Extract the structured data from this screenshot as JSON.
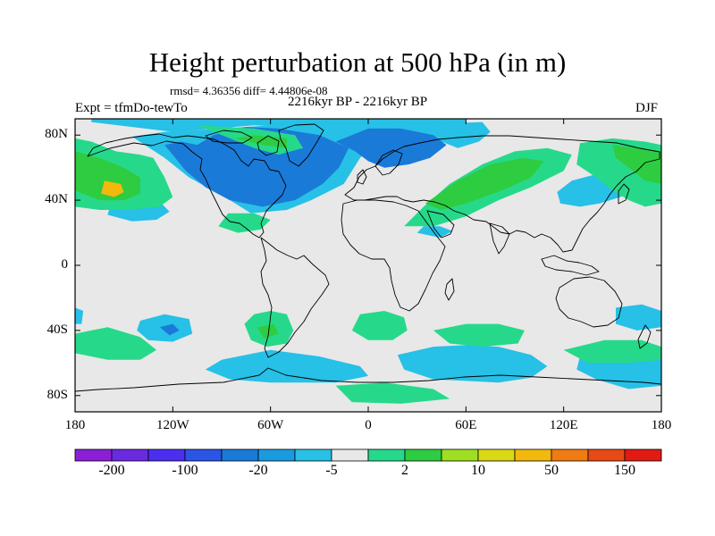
{
  "title": "Height perturbation at 500 hPa (in m)",
  "stats": "rmsd= 4.36356 diff= 4.44806e-08",
  "subtitle": "2216kyr BP - 2216kyr BP",
  "experiment": "Expt = tfmDo-tewTo",
  "season": "DJF",
  "map": {
    "projection": "cylindrical equidistant",
    "lon_range": [
      -180,
      180
    ],
    "lat_range": [
      -90,
      90
    ],
    "ocean_land_background": "#e8e8e8",
    "lat_ticks": [
      {
        "lat": 80,
        "label": "80N"
      },
      {
        "lat": 40,
        "label": "40N"
      },
      {
        "lat": 0,
        "label": "0"
      },
      {
        "lat": -40,
        "label": "40S"
      },
      {
        "lat": -80,
        "label": "80S"
      }
    ],
    "lon_ticks": [
      {
        "lon": -180,
        "label": "180"
      },
      {
        "lon": -120,
        "label": "120W"
      },
      {
        "lon": -60,
        "label": "60W"
      },
      {
        "lon": 0,
        "label": "0"
      },
      {
        "lon": 60,
        "label": "60E"
      },
      {
        "lon": 120,
        "label": "120E"
      },
      {
        "lon": 180,
        "label": "180"
      }
    ]
  },
  "colorbar": {
    "colors": [
      "#8c1fd6",
      "#6a2ae0",
      "#4b2ff0",
      "#2a55e6",
      "#1a7ad8",
      "#1a9bdf",
      "#27c0e6",
      "#e8e8e8",
      "#26d98a",
      "#2ecc40",
      "#9ee021",
      "#d9d916",
      "#f2b80c",
      "#ef7b12",
      "#e74a16",
      "#e11b12"
    ],
    "labels": [
      {
        "boundary": 1,
        "text": "-200"
      },
      {
        "boundary": 3,
        "text": "-100"
      },
      {
        "boundary": 5,
        "text": "-20"
      },
      {
        "boundary": 7,
        "text": "-5"
      },
      {
        "boundary": 9,
        "text": "2"
      },
      {
        "boundary": 11,
        "text": "10"
      },
      {
        "boundary": 13,
        "text": "50"
      },
      {
        "boundary": 15,
        "text": "150"
      }
    ]
  },
  "field_regions": [
    {
      "name": "neg-arctic-cap",
      "level": -5,
      "pts": [
        [
          -170,
          88
        ],
        [
          -120,
          82
        ],
        [
          -70,
          86
        ],
        [
          -20,
          84
        ],
        [
          30,
          82
        ],
        [
          60,
          87
        ],
        [
          60,
          90
        ],
        [
          -170,
          90
        ]
      ]
    },
    {
      "name": "neg-n-atlantic-trough",
      "level": -5,
      "pts": [
        [
          -145,
          79
        ],
        [
          -125,
          66
        ],
        [
          -110,
          54
        ],
        [
          -88,
          42
        ],
        [
          -72,
          32
        ],
        [
          -50,
          34
        ],
        [
          -35,
          40
        ],
        [
          -15,
          50
        ],
        [
          -5,
          66
        ],
        [
          5,
          76
        ],
        [
          15,
          78
        ],
        [
          30,
          80
        ],
        [
          45,
          76
        ],
        [
          55,
          72
        ],
        [
          68,
          76
        ],
        [
          75,
          82
        ],
        [
          70,
          88
        ],
        [
          20,
          86
        ],
        [
          -20,
          87
        ],
        [
          -60,
          86
        ],
        [
          -90,
          84
        ],
        [
          -125,
          82
        ]
      ]
    },
    {
      "name": "neg-n-atlantic-core",
      "level": -20,
      "pts": [
        [
          -125,
          74
        ],
        [
          -112,
          58
        ],
        [
          -100,
          48
        ],
        [
          -85,
          40
        ],
        [
          -65,
          36
        ],
        [
          -45,
          40
        ],
        [
          -28,
          50
        ],
        [
          -18,
          60
        ],
        [
          -12,
          72
        ],
        [
          -30,
          80
        ],
        [
          -55,
          84
        ],
        [
          -75,
          85
        ],
        [
          -95,
          80
        ],
        [
          -105,
          74
        ],
        [
          -115,
          76
        ]
      ]
    },
    {
      "name": "neg-europe-core",
      "level": -20,
      "pts": [
        [
          -20,
          76
        ],
        [
          -8,
          70
        ],
        [
          0,
          64
        ],
        [
          10,
          60
        ],
        [
          25,
          62
        ],
        [
          38,
          66
        ],
        [
          48,
          74
        ],
        [
          40,
          80
        ],
        [
          20,
          84
        ],
        [
          0,
          84
        ]
      ]
    },
    {
      "name": "neg-central-pacific",
      "level": -5,
      "pts": [
        [
          -160,
          31
        ],
        [
          -145,
          27
        ],
        [
          -130,
          28
        ],
        [
          -122,
          33
        ],
        [
          -128,
          39
        ],
        [
          -145,
          41
        ],
        [
          -158,
          38
        ]
      ]
    },
    {
      "name": "neg-se-asia",
      "level": -5,
      "pts": [
        [
          30,
          20
        ],
        [
          44,
          17
        ],
        [
          52,
          21
        ],
        [
          44,
          24
        ],
        [
          34,
          24
        ]
      ]
    },
    {
      "name": "neg-nw-pacific",
      "level": -5,
      "pts": [
        [
          118,
          38
        ],
        [
          130,
          36
        ],
        [
          142,
          38
        ],
        [
          155,
          42
        ],
        [
          165,
          48
        ],
        [
          168,
          56
        ],
        [
          155,
          58
        ],
        [
          140,
          56
        ],
        [
          125,
          52
        ],
        [
          116,
          45
        ]
      ]
    },
    {
      "name": "neg-sh-pacific",
      "level": -5,
      "pts": [
        [
          -140,
          -34
        ],
        [
          -125,
          -30
        ],
        [
          -110,
          -33
        ],
        [
          -108,
          -42
        ],
        [
          -120,
          -47
        ],
        [
          -135,
          -46
        ],
        [
          -142,
          -40
        ]
      ]
    },
    {
      "name": "neg-sh-pacific-core",
      "level": -20,
      "pts": [
        [
          -128,
          -38
        ],
        [
          -120,
          -36
        ],
        [
          -116,
          -40
        ],
        [
          -122,
          -43
        ]
      ]
    },
    {
      "name": "neg-sh-atlantic",
      "level": -5,
      "pts": [
        [
          -90,
          -58
        ],
        [
          -60,
          -52
        ],
        [
          -30,
          -56
        ],
        [
          -5,
          -62
        ],
        [
          0,
          -68
        ],
        [
          -20,
          -72
        ],
        [
          -60,
          -72
        ],
        [
          -85,
          -70
        ],
        [
          -100,
          -64
        ]
      ]
    },
    {
      "name": "neg-sh-indian",
      "level": -5,
      "pts": [
        [
          18,
          -55
        ],
        [
          40,
          -50
        ],
        [
          60,
          -49
        ],
        [
          80,
          -50
        ],
        [
          100,
          -55
        ],
        [
          110,
          -62
        ],
        [
          100,
          -69
        ],
        [
          80,
          -72
        ],
        [
          60,
          -71
        ],
        [
          40,
          -70
        ],
        [
          22,
          -64
        ]
      ]
    },
    {
      "name": "neg-sh-east",
      "level": -5,
      "pts": [
        [
          130,
          -56
        ],
        [
          150,
          -50
        ],
        [
          172,
          -52
        ],
        [
          180,
          -56
        ],
        [
          180,
          -74
        ],
        [
          160,
          -76
        ],
        [
          140,
          -70
        ],
        [
          128,
          -64
        ]
      ]
    },
    {
      "name": "neg-australia",
      "level": -5,
      "pts": [
        [
          152,
          -26
        ],
        [
          168,
          -24
        ],
        [
          180,
          -28
        ],
        [
          180,
          -38
        ],
        [
          165,
          -40
        ],
        [
          152,
          -36
        ]
      ]
    },
    {
      "name": "neg-far-west",
      "level": -5,
      "pts": [
        [
          -180,
          -26
        ],
        [
          -175,
          -28
        ],
        [
          -176,
          -36
        ],
        [
          -180,
          -36
        ]
      ]
    },
    {
      "name": "pos-n-pacific",
      "level": 2,
      "pts": [
        [
          -180,
          78
        ],
        [
          -170,
          76
        ],
        [
          -155,
          70
        ],
        [
          -140,
          68
        ],
        [
          -132,
          66
        ],
        [
          -125,
          54
        ],
        [
          -120,
          42
        ],
        [
          -128,
          36
        ],
        [
          -148,
          34
        ],
        [
          -165,
          34
        ],
        [
          -180,
          36
        ]
      ]
    },
    {
      "name": "pos-n-pacific-mid",
      "level": 10,
      "pts": [
        [
          -180,
          70
        ],
        [
          -165,
          66
        ],
        [
          -150,
          60
        ],
        [
          -140,
          54
        ],
        [
          -140,
          44
        ],
        [
          -150,
          40
        ],
        [
          -165,
          40
        ],
        [
          -180,
          46
        ]
      ]
    },
    {
      "name": "pos-n-pacific-core",
      "level": 50,
      "pts": [
        [
          -162,
          52
        ],
        [
          -152,
          50
        ],
        [
          -150,
          45
        ],
        [
          -156,
          42
        ],
        [
          -164,
          44
        ]
      ]
    },
    {
      "name": "pos-far-east-np",
      "level": 2,
      "pts": [
        [
          130,
          75
        ],
        [
          150,
          78
        ],
        [
          170,
          76
        ],
        [
          180,
          74
        ],
        [
          180,
          38
        ],
        [
          170,
          36
        ],
        [
          160,
          40
        ],
        [
          150,
          46
        ],
        [
          140,
          54
        ],
        [
          128,
          62
        ]
      ]
    },
    {
      "name": "pos-far-east-np-mid",
      "level": 10,
      "pts": [
        [
          150,
          74
        ],
        [
          165,
          72
        ],
        [
          180,
          70
        ],
        [
          180,
          50
        ],
        [
          170,
          52
        ],
        [
          160,
          60
        ],
        [
          152,
          66
        ]
      ]
    },
    {
      "name": "pos-greenland",
      "level": 2,
      "pts": [
        [
          -105,
          86
        ],
        [
          -85,
          78
        ],
        [
          -70,
          72
        ],
        [
          -55,
          68
        ],
        [
          -40,
          72
        ],
        [
          -45,
          80
        ],
        [
          -70,
          84
        ]
      ]
    },
    {
      "name": "pos-greenland-mid",
      "level": 10,
      "pts": [
        [
          -82,
          78
        ],
        [
          -65,
          74
        ],
        [
          -50,
          72
        ],
        [
          -50,
          78
        ],
        [
          -70,
          80
        ]
      ]
    },
    {
      "name": "pos-eurasia",
      "level": 2,
      "pts": [
        [
          22,
          24
        ],
        [
          34,
          36
        ],
        [
          50,
          50
        ],
        [
          70,
          62
        ],
        [
          90,
          70
        ],
        [
          110,
          72
        ],
        [
          125,
          68
        ],
        [
          120,
          58
        ],
        [
          100,
          48
        ],
        [
          80,
          40
        ],
        [
          60,
          30
        ],
        [
          40,
          24
        ]
      ]
    },
    {
      "name": "pos-eurasia-mid",
      "level": 10,
      "pts": [
        [
          35,
          38
        ],
        [
          55,
          52
        ],
        [
          75,
          62
        ],
        [
          95,
          66
        ],
        [
          108,
          64
        ],
        [
          100,
          54
        ],
        [
          82,
          46
        ],
        [
          60,
          38
        ],
        [
          45,
          34
        ]
      ]
    },
    {
      "name": "pos-caribbean",
      "level": 2,
      "pts": [
        [
          -92,
          24
        ],
        [
          -80,
          20
        ],
        [
          -66,
          22
        ],
        [
          -60,
          28
        ],
        [
          -70,
          32
        ],
        [
          -86,
          32
        ]
      ]
    },
    {
      "name": "pos-s-america",
      "level": 2,
      "pts": [
        [
          -70,
          -30
        ],
        [
          -60,
          -28
        ],
        [
          -50,
          -30
        ],
        [
          -46,
          -40
        ],
        [
          -50,
          -48
        ],
        [
          -62,
          -50
        ],
        [
          -72,
          -46
        ],
        [
          -76,
          -36
        ]
      ]
    },
    {
      "name": "pos-s-america-mid",
      "level": 10,
      "pts": [
        [
          -68,
          -38
        ],
        [
          -58,
          -36
        ],
        [
          -55,
          -42
        ],
        [
          -64,
          -45
        ]
      ]
    },
    {
      "name": "pos-s-atlantic",
      "level": 2,
      "pts": [
        [
          -5,
          -30
        ],
        [
          10,
          -28
        ],
        [
          22,
          -32
        ],
        [
          24,
          -40
        ],
        [
          15,
          -46
        ],
        [
          0,
          -46
        ],
        [
          -10,
          -40
        ]
      ]
    },
    {
      "name": "pos-sw-pacific",
      "level": 2,
      "pts": [
        [
          -180,
          -42
        ],
        [
          -160,
          -38
        ],
        [
          -140,
          -44
        ],
        [
          -130,
          -52
        ],
        [
          -140,
          -58
        ],
        [
          -160,
          -58
        ],
        [
          -180,
          -54
        ]
      ]
    },
    {
      "name": "pos-s-indian",
      "level": 2,
      "pts": [
        [
          40,
          -40
        ],
        [
          60,
          -36
        ],
        [
          80,
          -36
        ],
        [
          96,
          -40
        ],
        [
          92,
          -48
        ],
        [
          70,
          -50
        ],
        [
          50,
          -48
        ]
      ]
    },
    {
      "name": "pos-se-pacific",
      "level": 2,
      "pts": [
        [
          120,
          -52
        ],
        [
          145,
          -46
        ],
        [
          168,
          -46
        ],
        [
          180,
          -50
        ],
        [
          180,
          -58
        ],
        [
          160,
          -60
        ],
        [
          135,
          -60
        ]
      ]
    },
    {
      "name": "pos-antarctic-far",
      "level": 2,
      "pts": [
        [
          -20,
          -74
        ],
        [
          10,
          -72
        ],
        [
          40,
          -76
        ],
        [
          50,
          -82
        ],
        [
          20,
          -85
        ],
        [
          -10,
          -84
        ]
      ]
    }
  ]
}
